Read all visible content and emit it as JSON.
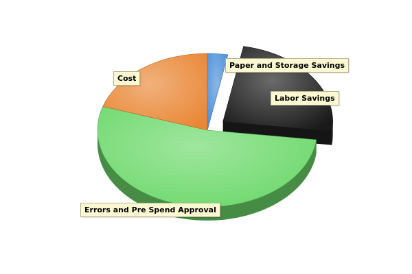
{
  "chart_data": {
    "type": "pie",
    "style": "3d-exploded",
    "title": "",
    "slices": [
      {
        "label": "Paper and Storage Savings",
        "value": 3,
        "color": "#4a8fd8",
        "exploded": false
      },
      {
        "label": "Labor Savings",
        "value": 24,
        "color": "#1a1a1a",
        "exploded": true
      },
      {
        "label": "Errors and Pre Spend Approval",
        "value": 53,
        "color": "#6cd86a",
        "exploded": false
      },
      {
        "label": "Cost",
        "value": 20,
        "color": "#e98735",
        "exploded": false
      }
    ]
  }
}
